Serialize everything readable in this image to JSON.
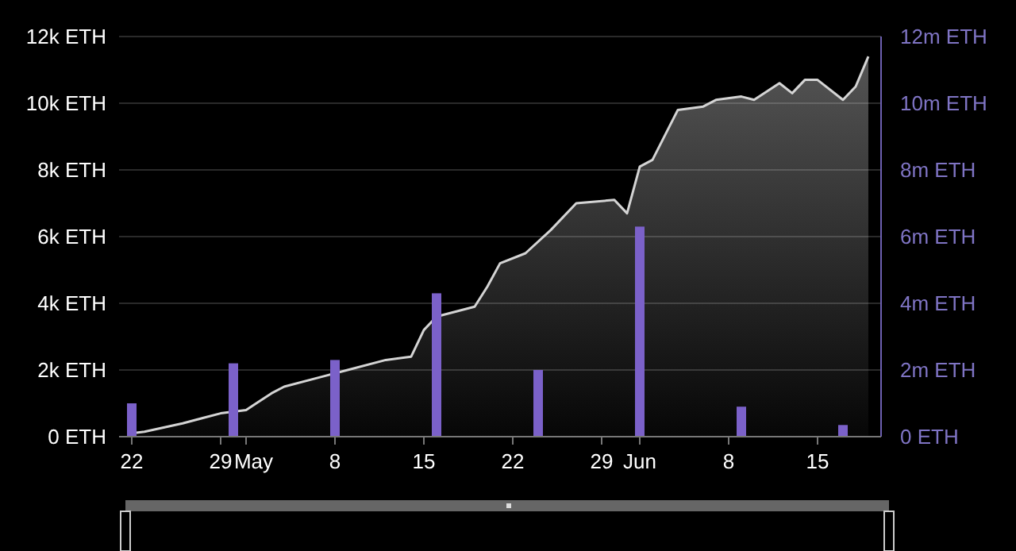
{
  "chart_data": {
    "type": "area",
    "xlim": [
      "--04-21",
      "--06-20"
    ],
    "xticks": [
      {
        "value": "--04-22",
        "label": "22"
      },
      {
        "value": "--04-29",
        "label": "29"
      },
      {
        "value": "--05-01",
        "label": "May"
      },
      {
        "value": "--05-08",
        "label": "8"
      },
      {
        "value": "--05-15",
        "label": "15"
      },
      {
        "value": "--05-22",
        "label": "22"
      },
      {
        "value": "--05-29",
        "label": "29"
      },
      {
        "value": "--06-01",
        "label": "Jun"
      },
      {
        "value": "--06-08",
        "label": "8"
      },
      {
        "value": "--06-15",
        "label": "15"
      }
    ],
    "ylim": [
      0,
      12000
    ],
    "yticks": [
      {
        "value": 0,
        "label": "0 ETH"
      },
      {
        "value": 2000,
        "label": "2k ETH"
      },
      {
        "value": 4000,
        "label": "4k ETH"
      },
      {
        "value": 6000,
        "label": "6k ETH"
      },
      {
        "value": 8000,
        "label": "8k ETH"
      },
      {
        "value": 10000,
        "label": "10k ETH"
      },
      {
        "value": 12000,
        "label": "12k ETH"
      }
    ],
    "y2lim": [
      0,
      12000000
    ],
    "y2ticks": [
      {
        "value": 0,
        "label": "0 ETH"
      },
      {
        "value": 2000000,
        "label": "2m ETH"
      },
      {
        "value": 4000000,
        "label": "4m ETH"
      },
      {
        "value": 6000000,
        "label": "6m ETH"
      },
      {
        "value": 8000000,
        "label": "8m ETH"
      },
      {
        "value": 10000000,
        "label": "10m ETH"
      },
      {
        "value": 12000000,
        "label": "12m ETH"
      }
    ],
    "grid": "y",
    "series": [
      {
        "color": "#d4d4d4",
        "x": [
          "--04-22",
          "--04-23",
          "--04-26",
          "--04-27",
          "--04-29",
          "--05-01",
          "--05-03",
          "--05-04",
          "--05-07",
          "--05-09",
          "--05-12",
          "--05-14",
          "--05-15",
          "--05-16",
          "--05-19",
          "--05-20",
          "--05-21",
          "--05-23",
          "--05-25",
          "--05-27",
          "--05-30",
          "--05-31",
          "--06-01",
          "--06-02",
          "--06-04",
          "--06-06",
          "--06-07",
          "--06-09",
          "--06-10",
          "--06-12",
          "--06-13",
          "--06-14",
          "--06-15",
          "--06-17",
          "--06-18",
          "--06-19"
        ],
        "values": [
          100,
          150,
          400,
          500,
          700,
          800,
          1300,
          1500,
          1800,
          2000,
          2300,
          2400,
          3200,
          3600,
          3900,
          4500,
          5200,
          5500,
          6200,
          7000,
          7100,
          6700,
          8100,
          8300,
          9800,
          9900,
          10100,
          10200,
          10100,
          10600,
          10300,
          10700,
          10700,
          10100,
          10500,
          11400
        ]
      },
      {
        "type": "bar",
        "axis": "y2",
        "color": "#7b61c9",
        "x": [
          "--04-22",
          "--04-30",
          "--05-08",
          "--05-16",
          "--05-24",
          "--06-01",
          "--06-09",
          "--06-17"
        ],
        "values": [
          1000000,
          2200000,
          2300000,
          4300000,
          2000000,
          6300000,
          900000,
          350000
        ]
      }
    ]
  }
}
